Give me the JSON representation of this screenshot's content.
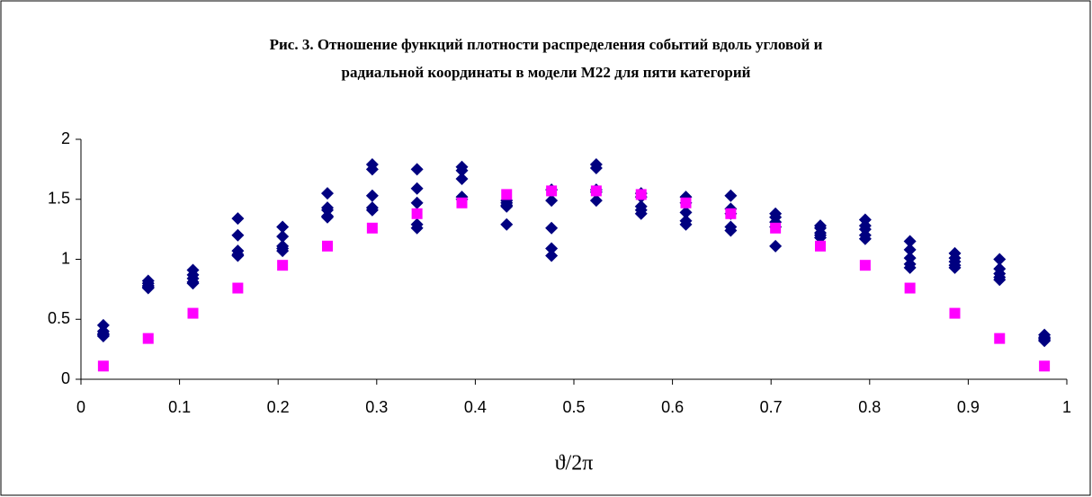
{
  "chart_data": {
    "type": "scatter",
    "title": [
      "Рис. 3. Отношение функций плотности распределения событий вдоль угловой и",
      "радиальной координаты в модели M22 для пяти категорий"
    ],
    "x_label": "ϑ/2π",
    "x": [
      0.0227,
      0.0682,
      0.1136,
      0.1591,
      0.2045,
      0.25,
      0.2955,
      0.3409,
      0.3864,
      0.4318,
      0.4773,
      0.5227,
      0.5682,
      0.6136,
      0.6591,
      0.7045,
      0.75,
      0.7955,
      0.8409,
      0.8864,
      0.9318,
      0.9773
    ],
    "series": [
      {
        "color": "#000080",
        "marker": "diamond",
        "values": [
          0.45,
          0.82,
          0.91,
          1.34,
          1.27,
          1.55,
          1.79,
          1.75,
          1.77,
          1.49,
          1.58,
          1.79,
          1.55,
          1.52,
          1.53,
          1.38,
          1.28,
          1.33,
          1.15,
          1.05,
          1.0,
          0.37
        ]
      },
      {
        "color": "#000080",
        "marker": "diamond",
        "values": [
          0.4,
          0.8,
          0.87,
          1.2,
          1.19,
          1.43,
          1.75,
          1.59,
          1.74,
          1.47,
          1.49,
          1.76,
          1.52,
          1.47,
          1.42,
          1.35,
          1.26,
          1.28,
          1.08,
          1.01,
          0.92,
          0.35
        ]
      },
      {
        "color": "#000080",
        "marker": "diamond",
        "values": [
          0.38,
          0.78,
          0.84,
          1.07,
          1.11,
          1.41,
          1.53,
          1.47,
          1.67,
          1.45,
          1.26,
          1.58,
          1.44,
          1.39,
          1.38,
          1.31,
          1.22,
          1.25,
          1.01,
          0.98,
          0.88,
          0.34
        ]
      },
      {
        "color": "#000080",
        "marker": "diamond",
        "values": [
          0.37,
          0.77,
          0.81,
          1.04,
          1.09,
          1.36,
          1.43,
          1.29,
          1.52,
          1.44,
          1.09,
          1.56,
          1.41,
          1.32,
          1.27,
          1.27,
          1.2,
          1.2,
          0.96,
          0.95,
          0.85,
          0.33
        ]
      },
      {
        "color": "#000080",
        "marker": "diamond",
        "values": [
          0.36,
          0.76,
          0.8,
          1.03,
          1.07,
          1.35,
          1.41,
          1.26,
          1.5,
          1.29,
          1.03,
          1.49,
          1.38,
          1.29,
          1.24,
          1.11,
          1.18,
          1.17,
          0.93,
          0.93,
          0.83,
          0.32
        ]
      },
      {
        "color": "#ff00ff",
        "marker": "square",
        "values": [
          0.11,
          0.34,
          0.55,
          0.76,
          0.95,
          1.11,
          1.26,
          1.38,
          1.47,
          1.54,
          1.57,
          1.57,
          1.54,
          1.47,
          1.38,
          1.26,
          1.11,
          0.95,
          0.76,
          0.55,
          0.34,
          0.11
        ]
      }
    ],
    "xlim": [
      0,
      1
    ],
    "xticks": [
      0,
      0.1,
      0.2,
      0.3,
      0.4,
      0.5,
      0.6,
      0.7,
      0.8,
      0.9,
      1
    ],
    "ylim": [
      0,
      2
    ],
    "yticks": [
      0,
      0.5,
      1,
      1.5,
      2
    ],
    "grid": false
  }
}
